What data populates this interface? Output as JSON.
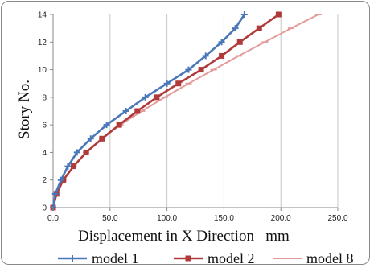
{
  "chart_data": {
    "type": "line",
    "title": "",
    "xlabel": "Displacement in X Direction   mm",
    "ylabel": "Story No.",
    "xlim": [
      0,
      250
    ],
    "ylim": [
      0,
      14
    ],
    "xticks": [
      0,
      50,
      100,
      150,
      200,
      250
    ],
    "xtick_labels": [
      "0.0",
      "50.0",
      "100.0",
      "150.0",
      "200.0",
      "250.0"
    ],
    "yticks": [
      0,
      2,
      4,
      6,
      8,
      10,
      12,
      14
    ],
    "ytick_labels": [
      "0",
      "2",
      "4",
      "6",
      "8",
      "10",
      "12",
      "14"
    ],
    "grid": "vertical",
    "legend_position": "bottom",
    "y": [
      0,
      1,
      2,
      3,
      4,
      5,
      6,
      7,
      8,
      9,
      10,
      11,
      12,
      13,
      14
    ],
    "series": [
      {
        "name": "model 1",
        "color": "#4a77b8",
        "marker": "plus",
        "x": [
          0,
          2,
          7,
          13,
          21,
          33,
          47,
          64,
          81,
          100,
          119,
          134,
          148,
          160,
          168
        ]
      },
      {
        "name": "model 2",
        "color": "#b03a3a",
        "marker": "square",
        "x": [
          0,
          3,
          9,
          18,
          29,
          43,
          58,
          74,
          91,
          110,
          130,
          148,
          164,
          181,
          198
        ]
      },
      {
        "name": "model 8",
        "color": "#e39c9c",
        "marker": "dash",
        "x": [
          0,
          3,
          9,
          18,
          29,
          43,
          59,
          78,
          98,
          119,
          141,
          163,
          186,
          209,
          233
        ]
      }
    ]
  }
}
